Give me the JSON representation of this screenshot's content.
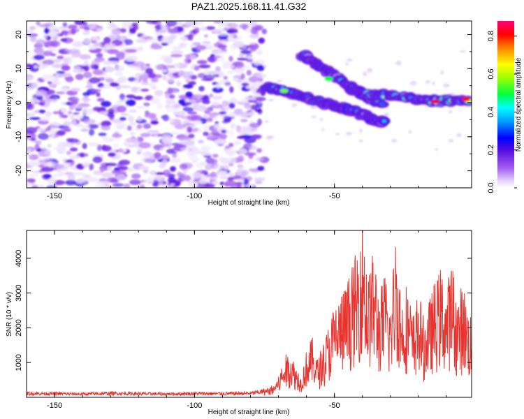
{
  "title": "PAZ1.2025.168.11.41.G32",
  "chart_data": [
    {
      "type": "heatmap",
      "name": "spectrogram",
      "xlabel": "Height of straight line (km)",
      "ylabel": "Frequency (Hz)",
      "xlim": [
        -160,
        -1
      ],
      "ylim": [
        -25,
        24
      ],
      "xticks": [
        "-150",
        "-100",
        "-50"
      ],
      "yticks": [
        "20",
        "10",
        "0",
        "-10",
        "-20"
      ],
      "noise_region": {
        "x": [
          -160,
          -75
        ],
        "y": [
          -25,
          24
        ]
      },
      "signal_tracks": [
        {
          "points": [
            [
              -74,
              4.5
            ],
            [
              -68,
              3.5
            ],
            [
              -62,
              2
            ],
            [
              -56,
              0.5
            ],
            [
              -50,
              -1
            ],
            [
              -45,
              -2
            ],
            [
              -40,
              -3.5
            ],
            [
              -36,
              -5
            ],
            [
              -32,
              -6
            ]
          ],
          "peak": 0.55
        },
        {
          "points": [
            [
              -61,
              14
            ],
            [
              -56,
              11
            ],
            [
              -50,
              8
            ],
            [
              -45,
              5
            ],
            [
              -41,
              3
            ],
            [
              -37,
              1
            ],
            [
              -33,
              0
            ]
          ],
          "peak": 0.45
        },
        {
          "points": [
            [
              -38,
              2.5
            ],
            [
              -30,
              2
            ],
            [
              -22,
              1
            ],
            [
              -15,
              0.5
            ],
            [
              -8,
              0.5
            ],
            [
              -1,
              1
            ]
          ],
          "peak": 0.8
        }
      ],
      "colorbar": {
        "label": "Normalized spectral amplitude",
        "range": [
          0.0,
          0.88
        ],
        "ticks": [
          "0.0",
          "0.2",
          "0.4",
          "0.6",
          "0.8"
        ],
        "colormap": "rainbow"
      }
    },
    {
      "type": "line",
      "name": "snr",
      "xlabel": "Height of straight line (km)",
      "ylabel": "SNR (10 * v/v)",
      "xlim": [
        -160,
        -1
      ],
      "ylim": [
        0,
        4800
      ],
      "xticks": [
        "-150",
        "-100",
        "-50"
      ],
      "yticks": [
        "1000",
        "2000",
        "3000",
        "4000"
      ],
      "color": "#e8332e",
      "series": [
        {
          "x": [
            -160,
            -150,
            -140,
            -130,
            -120,
            -110,
            -100,
            -90,
            -80,
            -75,
            -72,
            -70,
            -68,
            -66,
            -64,
            -62,
            -60,
            -58,
            -56,
            -54,
            -52,
            -50,
            -48,
            -46,
            -44,
            -42,
            -40,
            -38,
            -36,
            -34,
            -32,
            -30,
            -28,
            -26,
            -24,
            -22,
            -20,
            -18,
            -16,
            -14,
            -12,
            -10,
            -8,
            -6,
            -4,
            -2,
            -1
          ],
          "y": [
            120,
            110,
            100,
            120,
            110,
            100,
            115,
            110,
            120,
            180,
            300,
            500,
            900,
            1100,
            800,
            500,
            1100,
            1400,
            900,
            1300,
            1700,
            2200,
            2400,
            2600,
            3000,
            3400,
            4700,
            2800,
            3500,
            2400,
            2900,
            2200,
            4000,
            2300,
            2700,
            1900,
            2500,
            1800,
            2300,
            2700,
            3000,
            2600,
            3200,
            2300,
            2700,
            2000,
            2000
          ]
        }
      ]
    }
  ]
}
